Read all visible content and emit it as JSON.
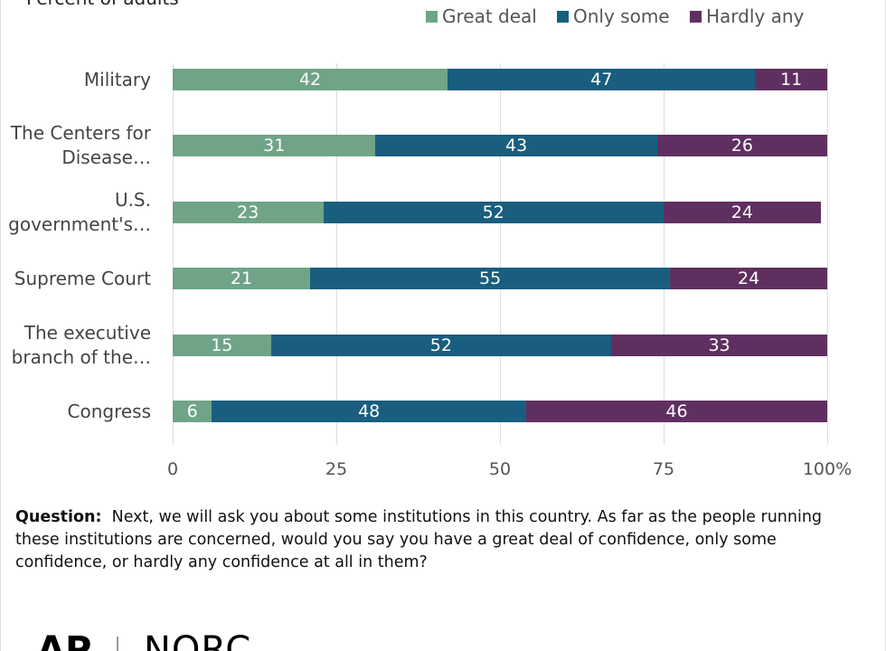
{
  "chart_data": {
    "type": "stacked_barh",
    "subtitle": "Percent of adults",
    "categories": [
      "Military",
      "The Centers for Disease…",
      "U.S. government's…",
      "Supreme Court",
      "The executive branch of the…",
      "Congress"
    ],
    "series": [
      {
        "name": "Great deal",
        "color": "#6fa487",
        "values": [
          42,
          31,
          23,
          21,
          15,
          6
        ]
      },
      {
        "name": "Only some",
        "color": "#195e7e",
        "values": [
          47,
          43,
          52,
          55,
          52,
          48
        ]
      },
      {
        "name": "Hardly any",
        "color": "#602f61",
        "values": [
          11,
          26,
          24,
          24,
          33,
          46
        ]
      }
    ],
    "xlim": [
      0,
      100
    ],
    "xticks": [
      0,
      25,
      50,
      75,
      {
        "value": 100,
        "label": "100%"
      }
    ],
    "grid": true,
    "legend": "top",
    "note_label": "Question:",
    "note": "Next, we will ask you about some institutions in this country. As far as the people running these institutions are concerned, would you say you have a great deal of confidence, only some confidence, or hardly any confidence at all in them?",
    "logo": [
      "AP",
      "NORC"
    ]
  }
}
